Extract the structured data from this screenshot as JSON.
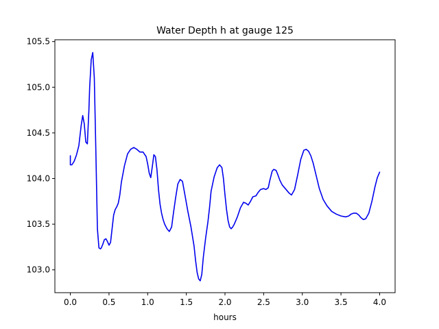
{
  "chart_data": {
    "type": "line",
    "title": "Water Depth h at gauge 125",
    "xlabel": "hours",
    "ylabel": "",
    "xlim": [
      -0.2,
      4.2
    ],
    "ylim": [
      102.75,
      105.52
    ],
    "xticks": [
      0.0,
      0.5,
      1.0,
      1.5,
      2.0,
      2.5,
      3.0,
      3.5,
      4.0
    ],
    "xtick_labels": [
      "0.0",
      "0.5",
      "1.0",
      "1.5",
      "2.0",
      "2.5",
      "3.0",
      "3.5",
      "4.0"
    ],
    "yticks": [
      103.0,
      103.5,
      104.0,
      104.5,
      105.0,
      105.5
    ],
    "ytick_labels": [
      "103.0",
      "103.5",
      "104.0",
      "104.5",
      "105.0",
      "105.5"
    ],
    "grid": false,
    "legend": "none",
    "series": [
      {
        "name": "",
        "color": "#0000ee",
        "x": [
          0.0,
          0.0,
          0.02,
          0.05,
          0.08,
          0.11,
          0.14,
          0.16,
          0.18,
          0.2,
          0.22,
          0.24,
          0.25,
          0.27,
          0.29,
          0.31,
          0.33,
          0.35,
          0.37,
          0.39,
          0.4,
          0.42,
          0.44,
          0.46,
          0.48,
          0.5,
          0.52,
          0.54,
          0.56,
          0.58,
          0.6,
          0.62,
          0.64,
          0.66,
          0.7,
          0.74,
          0.78,
          0.82,
          0.86,
          0.9,
          0.94,
          0.98,
          1.0,
          1.02,
          1.04,
          1.06,
          1.08,
          1.1,
          1.12,
          1.14,
          1.16,
          1.18,
          1.2,
          1.22,
          1.25,
          1.28,
          1.31,
          1.33,
          1.36,
          1.39,
          1.42,
          1.45,
          1.48,
          1.52,
          1.56,
          1.6,
          1.62,
          1.64,
          1.66,
          1.68,
          1.7,
          1.72,
          1.75,
          1.78,
          1.8,
          1.82,
          1.86,
          1.9,
          1.93,
          1.96,
          1.98,
          2.0,
          2.02,
          2.04,
          2.06,
          2.08,
          2.1,
          2.12,
          2.16,
          2.2,
          2.24,
          2.27,
          2.3,
          2.33,
          2.36,
          2.4,
          2.43,
          2.46,
          2.5,
          2.53,
          2.56,
          2.58,
          2.61,
          2.63,
          2.66,
          2.68,
          2.71,
          2.74,
          2.77,
          2.8,
          2.83,
          2.86,
          2.9,
          2.94,
          2.98,
          3.02,
          3.05,
          3.08,
          3.11,
          3.14,
          3.18,
          3.22,
          3.27,
          3.32,
          3.38,
          3.44,
          3.5,
          3.56,
          3.6,
          3.63,
          3.66,
          3.7,
          3.73,
          3.76,
          3.79,
          3.82,
          3.86,
          3.9,
          3.94,
          3.97,
          4.0
        ],
        "y": [
          104.25,
          104.15,
          104.15,
          104.19,
          104.26,
          104.36,
          104.58,
          104.69,
          104.6,
          104.4,
          104.38,
          104.75,
          105.0,
          105.3,
          105.38,
          105.1,
          104.3,
          103.45,
          103.24,
          103.23,
          103.24,
          103.28,
          103.33,
          103.34,
          103.31,
          103.27,
          103.3,
          103.45,
          103.6,
          103.66,
          103.69,
          103.73,
          103.82,
          103.96,
          104.14,
          104.27,
          104.32,
          104.34,
          104.32,
          104.29,
          104.29,
          104.24,
          104.16,
          104.06,
          104.01,
          104.13,
          104.26,
          104.24,
          104.1,
          103.88,
          103.72,
          103.62,
          103.55,
          103.5,
          103.45,
          103.42,
          103.47,
          103.6,
          103.78,
          103.94,
          103.99,
          103.97,
          103.83,
          103.64,
          103.47,
          103.26,
          103.1,
          102.97,
          102.9,
          102.88,
          102.95,
          103.14,
          103.35,
          103.53,
          103.68,
          103.86,
          104.02,
          104.12,
          104.15,
          104.12,
          104.0,
          103.82,
          103.66,
          103.54,
          103.47,
          103.45,
          103.47,
          103.5,
          103.58,
          103.68,
          103.74,
          103.73,
          103.71,
          103.75,
          103.8,
          103.81,
          103.85,
          103.88,
          103.89,
          103.88,
          103.9,
          103.98,
          104.08,
          104.1,
          104.09,
          104.05,
          103.98,
          103.93,
          103.9,
          103.87,
          103.84,
          103.82,
          103.88,
          104.04,
          104.21,
          104.31,
          104.32,
          104.3,
          104.25,
          104.17,
          104.03,
          103.89,
          103.77,
          103.7,
          103.64,
          103.61,
          103.59,
          103.58,
          103.59,
          103.61,
          103.62,
          103.62,
          103.6,
          103.57,
          103.55,
          103.56,
          103.62,
          103.75,
          103.91,
          104.01,
          104.07
        ]
      }
    ]
  }
}
